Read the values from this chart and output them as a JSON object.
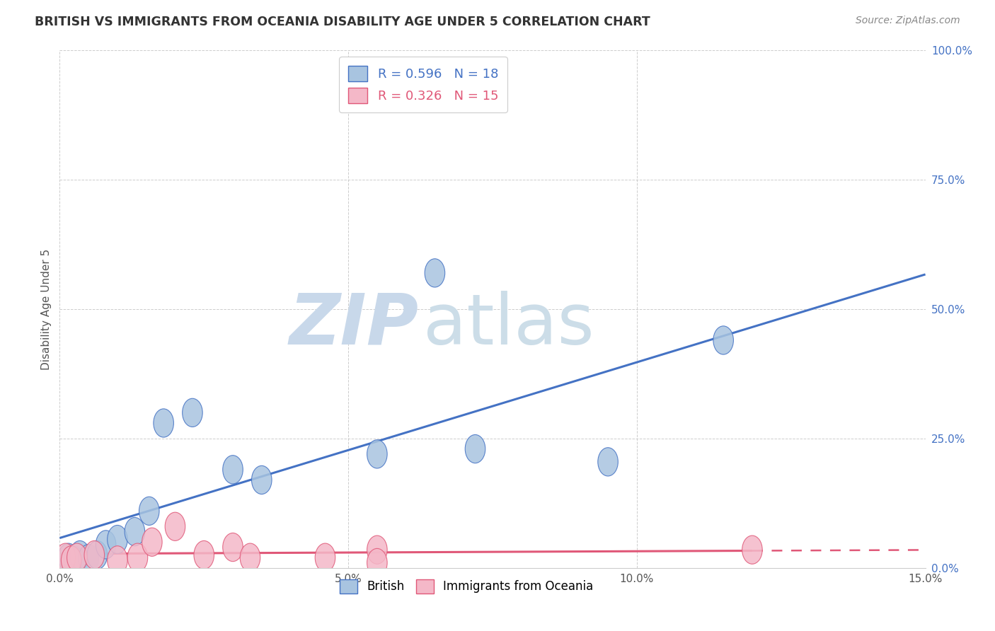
{
  "title": "BRITISH VS IMMIGRANTS FROM OCEANIA DISABILITY AGE UNDER 5 CORRELATION CHART",
  "source": "Source: ZipAtlas.com",
  "ylabel": "Disability Age Under 5",
  "xlim": [
    0.0,
    15.0
  ],
  "ylim": [
    0.0,
    100.0
  ],
  "xticks": [
    0.0,
    5.0,
    10.0,
    15.0
  ],
  "yticks": [
    0.0,
    25.0,
    50.0,
    75.0,
    100.0
  ],
  "xticklabels": [
    "0.0%",
    "5.0%",
    "10.0%",
    "15.0%"
  ],
  "yticklabels": [
    "0.0%",
    "25.0%",
    "50.0%",
    "75.0%",
    "100.0%"
  ],
  "british_color": "#a8c4e0",
  "oceania_color": "#f4b8c8",
  "british_line_color": "#4472c4",
  "oceania_line_color": "#e05878",
  "british_R": 0.596,
  "british_N": 18,
  "oceania_R": 0.326,
  "oceania_N": 15,
  "british_x": [
    0.15,
    0.25,
    0.35,
    0.5,
    0.65,
    0.8,
    1.0,
    1.3,
    1.55,
    1.8,
    2.3,
    3.0,
    3.5,
    5.5,
    6.5,
    7.2,
    9.5,
    11.5
  ],
  "british_y": [
    2.0,
    1.5,
    2.5,
    1.8,
    2.5,
    4.5,
    5.5,
    7.0,
    11.0,
    28.0,
    30.0,
    19.0,
    17.0,
    22.0,
    57.0,
    23.0,
    20.5,
    44.0
  ],
  "oceania_x": [
    0.1,
    0.2,
    0.3,
    0.6,
    1.0,
    1.35,
    1.6,
    2.0,
    2.5,
    3.0,
    3.3,
    4.6,
    5.5,
    5.5,
    12.0
  ],
  "oceania_y": [
    2.0,
    1.5,
    2.0,
    2.5,
    1.5,
    2.0,
    5.0,
    8.0,
    2.5,
    4.0,
    2.0,
    2.0,
    3.5,
    1.0,
    3.5
  ],
  "background_color": "#ffffff",
  "grid_color": "#c8c8c8",
  "title_color": "#333333",
  "watermark_zip_color": "#c5d5e8",
  "watermark_atlas_color": "#c8d8e8"
}
